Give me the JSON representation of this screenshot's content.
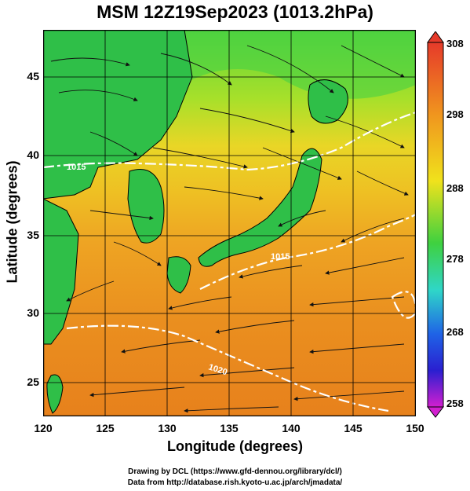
{
  "title": "MSM 12Z19Sep2023 (1013.2hPa)",
  "x_axis": {
    "label": "Longitude (degrees)",
    "ticks": [
      "120",
      "125",
      "130",
      "135",
      "140",
      "145",
      "150"
    ]
  },
  "y_axis": {
    "label": "Latitude  (degrees)",
    "ticks": [
      "45",
      "40",
      "35",
      "30",
      "25"
    ]
  },
  "colorbar": {
    "ticks": [
      "308",
      "298",
      "288",
      "278",
      "268",
      "258"
    ]
  },
  "contour_labels": [
    "1015",
    "1015",
    "1020"
  ],
  "credits": {
    "line1": "Drawing by DCL (https://www.gfd-dennou.org/library/dcl/)",
    "line2": "Data from http://database.rish.kyoto-u.ac.jp/arch/jmadata/"
  },
  "colors": {
    "warm": "#ea8a1c",
    "mid": "#e9e21c",
    "cool": "#3fd13f",
    "land": "#33c74d"
  },
  "chart_data": {
    "type": "heatmap",
    "title": "MSM 12Z19Sep2023 (1013.2hPa)",
    "xlabel": "Longitude (degrees)",
    "ylabel": "Latitude  (degrees)",
    "xlim": [
      120,
      150
    ],
    "ylim": [
      22.5,
      47.5
    ],
    "colorbar_range": [
      258,
      308
    ],
    "colorbar_ticks": [
      308,
      298,
      288,
      278,
      268,
      258
    ],
    "grid": true
  }
}
